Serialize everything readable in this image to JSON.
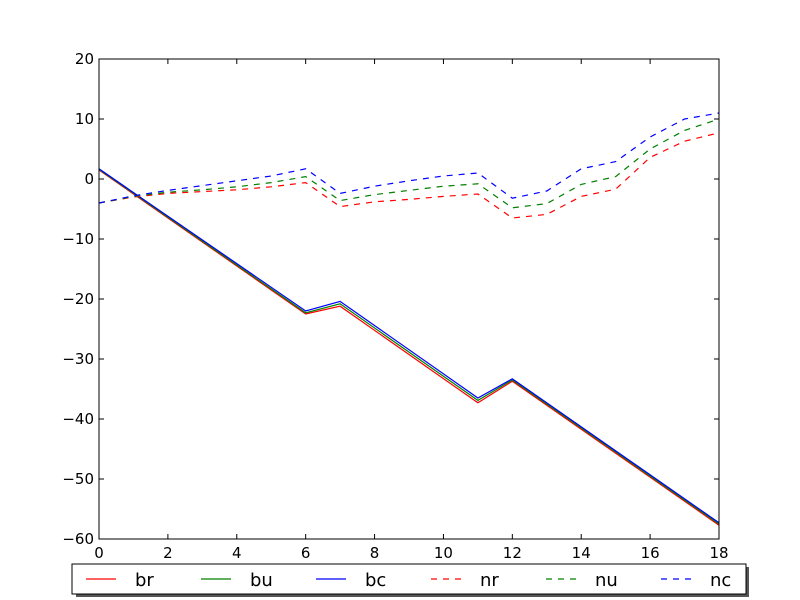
{
  "chart_data": {
    "type": "line",
    "title": "",
    "xlabel": "",
    "ylabel": "",
    "xlim": [
      0,
      18
    ],
    "ylim": [
      -60,
      20
    ],
    "xticks": [
      0,
      2,
      4,
      6,
      8,
      10,
      12,
      14,
      16,
      18
    ],
    "yticks": [
      20,
      10,
      0,
      -10,
      -20,
      -30,
      -40,
      -50,
      -60
    ],
    "xtick_labels": [
      "0",
      "2",
      "4",
      "6",
      "8",
      "10",
      "12",
      "14",
      "16",
      "18"
    ],
    "ytick_labels": [
      "20",
      "10",
      "0",
      "−10",
      "−20",
      "−30",
      "−40",
      "−50",
      "−60"
    ],
    "grid": false,
    "legend_position": "bottom-below-axes",
    "series": [
      {
        "name": "br",
        "color": "#ff0000",
        "dash": "solid",
        "x": [
          0,
          6,
          7,
          11,
          12,
          18
        ],
        "y": [
          1.5,
          -22.5,
          -21.2,
          -37.3,
          -33.7,
          -57.7
        ]
      },
      {
        "name": "bu",
        "color": "#008000",
        "dash": "solid",
        "x": [
          0,
          6,
          7,
          11,
          12,
          18
        ],
        "y": [
          1.6,
          -22.3,
          -20.8,
          -36.9,
          -33.5,
          -57.5
        ]
      },
      {
        "name": "bc",
        "color": "#0000ff",
        "dash": "solid",
        "x": [
          0,
          6,
          7,
          11,
          12,
          18
        ],
        "y": [
          1.7,
          -22.0,
          -20.4,
          -36.5,
          -33.3,
          -57.3
        ]
      },
      {
        "name": "nr",
        "color": "#ff0000",
        "dash": "dashed",
        "x": [
          0,
          1,
          2,
          3,
          4,
          5,
          6,
          7,
          8,
          9,
          10,
          11,
          12,
          13,
          14,
          15,
          16,
          17,
          18
        ],
        "y": [
          -4.0,
          -3.0,
          -2.4,
          -2.1,
          -1.8,
          -1.3,
          -0.6,
          -4.6,
          -3.8,
          -3.4,
          -2.9,
          -2.5,
          -6.5,
          -5.9,
          -2.9,
          -1.7,
          3.6,
          6.3,
          7.7
        ]
      },
      {
        "name": "nu",
        "color": "#008000",
        "dash": "dashed",
        "x": [
          0,
          1,
          2,
          3,
          4,
          5,
          6,
          7,
          8,
          9,
          10,
          11,
          12,
          13,
          14,
          15,
          16,
          17,
          18
        ],
        "y": [
          -4.0,
          -2.9,
          -2.2,
          -1.8,
          -1.3,
          -0.6,
          0.4,
          -3.6,
          -2.6,
          -1.9,
          -1.2,
          -0.8,
          -4.8,
          -4.1,
          -0.9,
          0.4,
          5.0,
          8.1,
          10.0
        ]
      },
      {
        "name": "nc",
        "color": "#0000ff",
        "dash": "dashed",
        "x": [
          0,
          1,
          2,
          3,
          4,
          5,
          6,
          7,
          8,
          9,
          10,
          11,
          12,
          13,
          14,
          15,
          16,
          17,
          18
        ],
        "y": [
          -4.0,
          -2.8,
          -1.9,
          -1.1,
          -0.3,
          0.5,
          1.7,
          -2.4,
          -1.2,
          -0.3,
          0.5,
          1.0,
          -3.2,
          -2.0,
          1.7,
          2.9,
          7.0,
          10.0,
          11.0
        ]
      }
    ]
  }
}
